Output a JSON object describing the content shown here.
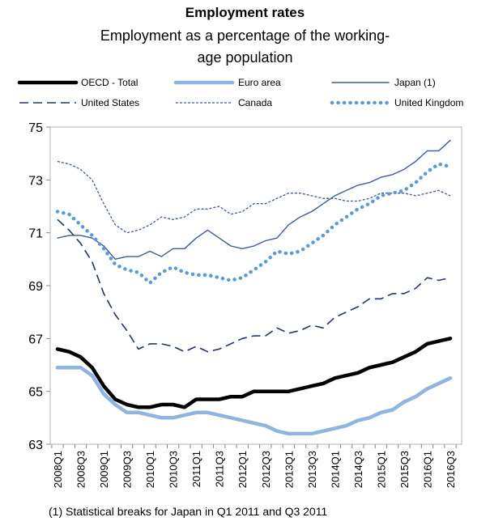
{
  "title": "Employment rates",
  "subtitle_line1": "Employment as a percentage of the working-",
  "subtitle_line2": "age population",
  "footnote": "(1) Statistical breaks for Japan in Q1 2011 and Q3 2011",
  "chart_data": {
    "type": "line",
    "title": "Employment rates",
    "subtitle": "Employment as a percentage of the working-age population",
    "xlabel": "",
    "ylabel": "",
    "ylim": [
      63,
      75
    ],
    "yticks": [
      63,
      65,
      67,
      69,
      71,
      73,
      75
    ],
    "grid": false,
    "legend_position": "top",
    "x": [
      "2008Q1",
      "2008Q2",
      "2008Q3",
      "2008Q4",
      "2009Q1",
      "2009Q2",
      "2009Q3",
      "2009Q4",
      "2010Q1",
      "2010Q2",
      "2010Q3",
      "2010Q4",
      "2011Q1",
      "2011Q2",
      "2011Q3",
      "2011Q4",
      "2012Q1",
      "2012Q2",
      "2012Q3",
      "2012Q4",
      "2013Q1",
      "2013Q2",
      "2013Q3",
      "2013Q4",
      "2014Q1",
      "2014Q2",
      "2014Q3",
      "2014Q4",
      "2015Q1",
      "2015Q2",
      "2015Q3",
      "2015Q4",
      "2016Q1",
      "2016Q2",
      "2016Q3"
    ],
    "xtick_labels": [
      "2008Q1",
      "2008Q3",
      "2009Q1",
      "2009Q3",
      "2010Q1",
      "2010Q3",
      "2011Q1",
      "2011Q3",
      "2012Q1",
      "2012Q3",
      "2013Q1",
      "2013Q3",
      "2014Q1",
      "2014Q3",
      "2015Q1",
      "2015Q3",
      "2016Q1",
      "2016Q3"
    ],
    "series": [
      {
        "name": "OECD - Total",
        "color": "#000000",
        "style": "thick",
        "values": [
          66.6,
          66.5,
          66.3,
          65.9,
          65.2,
          64.7,
          64.5,
          64.4,
          64.4,
          64.5,
          64.5,
          64.4,
          64.7,
          64.7,
          64.7,
          64.8,
          64.8,
          65.0,
          65.0,
          65.0,
          65.0,
          65.1,
          65.2,
          65.3,
          65.5,
          65.6,
          65.7,
          65.9,
          66.0,
          66.1,
          66.3,
          66.5,
          66.8,
          66.9,
          67.0
        ]
      },
      {
        "name": "Euro area",
        "color": "#8fb4e0",
        "style": "thick-light",
        "values": [
          65.9,
          65.9,
          65.9,
          65.6,
          64.9,
          64.5,
          64.2,
          64.2,
          64.1,
          64.0,
          64.0,
          64.1,
          64.2,
          64.2,
          64.1,
          64.0,
          63.9,
          63.8,
          63.7,
          63.5,
          63.4,
          63.4,
          63.4,
          63.5,
          63.6,
          63.7,
          63.9,
          64.0,
          64.2,
          64.3,
          64.6,
          64.8,
          65.1,
          65.3,
          65.5
        ]
      },
      {
        "name": "Japan (1)",
        "color": "#3f5c94",
        "style": "thin",
        "values": [
          70.8,
          70.9,
          70.9,
          70.8,
          70.5,
          70.0,
          70.1,
          70.1,
          70.3,
          70.1,
          70.4,
          70.4,
          70.8,
          71.1,
          70.8,
          70.5,
          70.4,
          70.5,
          70.7,
          70.8,
          71.3,
          71.6,
          71.8,
          72.1,
          72.4,
          72.6,
          72.8,
          72.9,
          73.1,
          73.2,
          73.4,
          73.7,
          74.1,
          74.1,
          74.5
        ]
      },
      {
        "name": "United States",
        "color": "#1f3864",
        "style": "long-dash",
        "values": [
          71.5,
          71.1,
          70.6,
          69.9,
          68.7,
          67.9,
          67.3,
          66.6,
          66.8,
          66.8,
          66.7,
          66.5,
          66.7,
          66.5,
          66.6,
          66.8,
          67.0,
          67.1,
          67.1,
          67.4,
          67.2,
          67.3,
          67.5,
          67.4,
          67.8,
          68.0,
          68.2,
          68.5,
          68.5,
          68.7,
          68.7,
          68.9,
          69.3,
          69.2,
          69.3
        ]
      },
      {
        "name": "Canada",
        "color": "#3f5c94",
        "style": "short-dash",
        "values": [
          73.7,
          73.6,
          73.4,
          73.0,
          72.1,
          71.3,
          71.0,
          71.1,
          71.3,
          71.6,
          71.5,
          71.6,
          71.9,
          71.9,
          72.0,
          71.7,
          71.8,
          72.1,
          72.1,
          72.3,
          72.5,
          72.5,
          72.4,
          72.3,
          72.3,
          72.2,
          72.2,
          72.3,
          72.5,
          72.5,
          72.5,
          72.4,
          72.5,
          72.6,
          72.4
        ]
      },
      {
        "name": "United Kingdom",
        "color": "#5b9bd5",
        "style": "dotted",
        "values": [
          71.8,
          71.7,
          71.3,
          70.9,
          70.4,
          69.8,
          69.6,
          69.5,
          69.1,
          69.5,
          69.7,
          69.5,
          69.4,
          69.4,
          69.3,
          69.2,
          69.3,
          69.6,
          69.9,
          70.3,
          70.2,
          70.3,
          70.6,
          70.9,
          71.3,
          71.6,
          71.9,
          72.1,
          72.4,
          72.5,
          72.6,
          72.9,
          73.3,
          73.6,
          73.5
        ]
      }
    ]
  }
}
